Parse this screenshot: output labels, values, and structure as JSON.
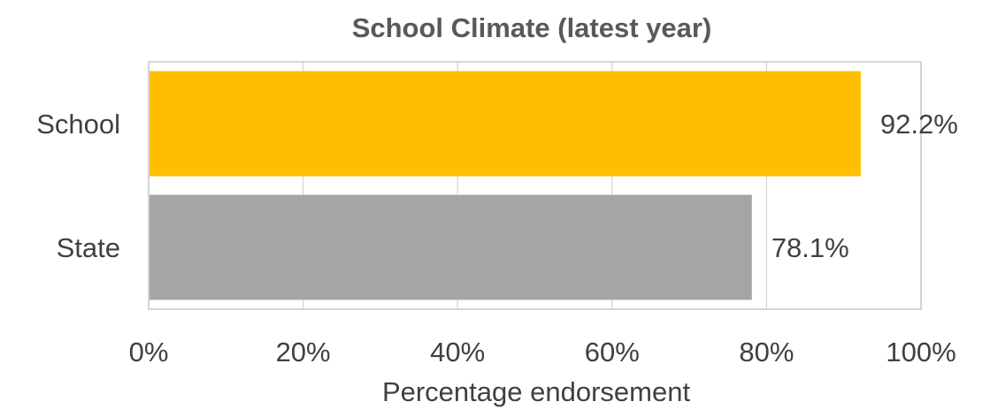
{
  "chart_data": {
    "type": "bar",
    "orientation": "horizontal",
    "title": "School Climate (latest year)",
    "xlabel": "Percentage endorsement",
    "ylabel": "",
    "categories": [
      "School",
      "State"
    ],
    "values": [
      92.2,
      78.1
    ],
    "value_labels": [
      "92.2%",
      "78.1%"
    ],
    "bar_colors": [
      "#FFBF00",
      "#A5A5A5"
    ],
    "xlim": [
      0,
      100
    ],
    "x_ticks": [
      0,
      20,
      40,
      60,
      80,
      100
    ],
    "x_tick_labels": [
      "0%",
      "20%",
      "40%",
      "60%",
      "80%",
      "100%"
    ],
    "grid": true,
    "legend": "none"
  }
}
